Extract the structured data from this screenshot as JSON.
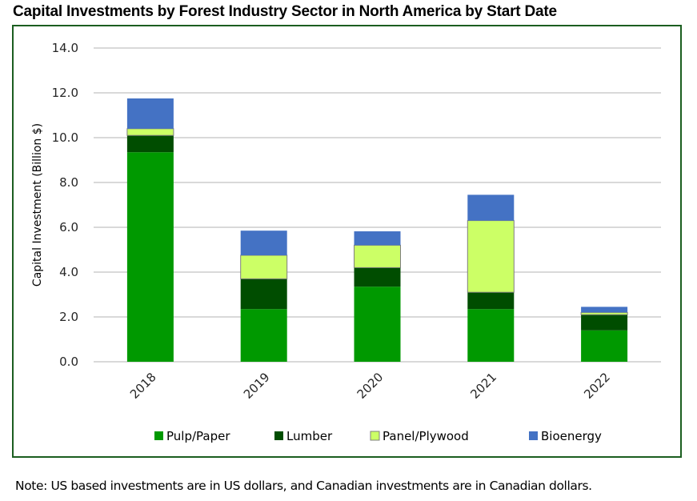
{
  "title": "Capital Investments by Forest Industry Sector in North America by Start Date",
  "note": "Note: US based investments are in US dollars, and Canadian investments are in Canadian dollars.",
  "chart_data": {
    "type": "bar",
    "stacked": true,
    "title": "Capital Investments by Forest Industry Sector in North America by Start Date",
    "xlabel": "",
    "ylabel": "Capital Investment (Billion $)",
    "ylim": [
      0,
      14
    ],
    "yticks": [
      "0.0",
      "2.0",
      "4.0",
      "6.0",
      "8.0",
      "10.0",
      "12.0",
      "14.0"
    ],
    "grid": true,
    "legend_position": "bottom",
    "categories": [
      "2018",
      "2019",
      "2020",
      "2021",
      "2022"
    ],
    "series": [
      {
        "name": "Pulp/Paper",
        "color": "#009900",
        "values": [
          9.35,
          2.35,
          3.35,
          2.35,
          1.4
        ]
      },
      {
        "name": "Lumber",
        "color": "#004d00",
        "values": [
          0.75,
          1.35,
          0.85,
          0.75,
          0.7
        ]
      },
      {
        "name": "Panel/Plywood",
        "color": "#ccff66",
        "values": [
          0.3,
          1.05,
          1.0,
          3.2,
          0.1
        ]
      },
      {
        "name": "Bioenergy",
        "color": "#4472c4",
        "values": [
          1.35,
          1.1,
          0.62,
          1.15,
          0.25
        ]
      }
    ]
  }
}
